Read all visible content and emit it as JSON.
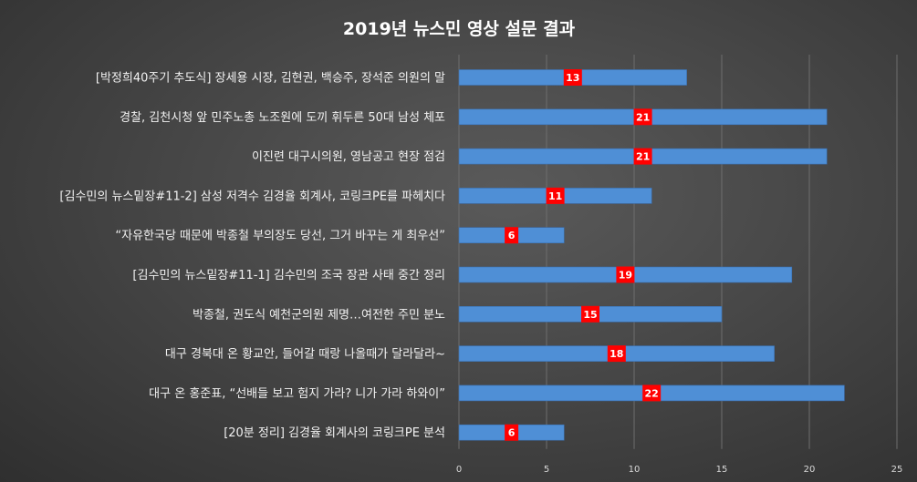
{
  "chart_data": {
    "type": "bar",
    "orientation": "horizontal",
    "title": "2019년 뉴스민 영상 설문 결과",
    "categories": [
      "[박정희40주기 추도식] 장세용 시장, 김현권, 백승주, 장석준 의원의 말",
      "경찰, 김천시청 앞 민주노총 노조원에 도끼 휘두른 50대 남성 체포",
      "이진련 대구시의원, 영남공고 현장 점검",
      "[김수민의 뉴스밑장#11-2] 삼성 저격수 김경율 회계사, 코링크PE를 파헤치다",
      "“자유한국당 때문에 박종철 부의장도 당선, 그거 바꾸는 게 최우선”",
      "[김수민의 뉴스밑장#11-1] 김수민의 조국 장관 사태 중간 정리",
      "박종철, 권도식 예천군의원 제명…여전한 주민 분노",
      "대구 경북대 온 황교안, 들어갈 때랑 나올때가 달라달라~",
      "대구 온 홍준표, “선배들 보고 험지 가라? 니가 가라 하와이”",
      "[20분 정리] 김경율 회계사의 코링크PE 분석"
    ],
    "values": [
      13,
      21,
      21,
      11,
      6,
      19,
      15,
      18,
      22,
      6
    ],
    "xlim": [
      0,
      25
    ],
    "xticks": [
      0,
      5,
      10,
      15,
      20,
      25
    ],
    "grid": true,
    "bar_color": "#4f8fd6",
    "label_bg": "#ff0000"
  }
}
